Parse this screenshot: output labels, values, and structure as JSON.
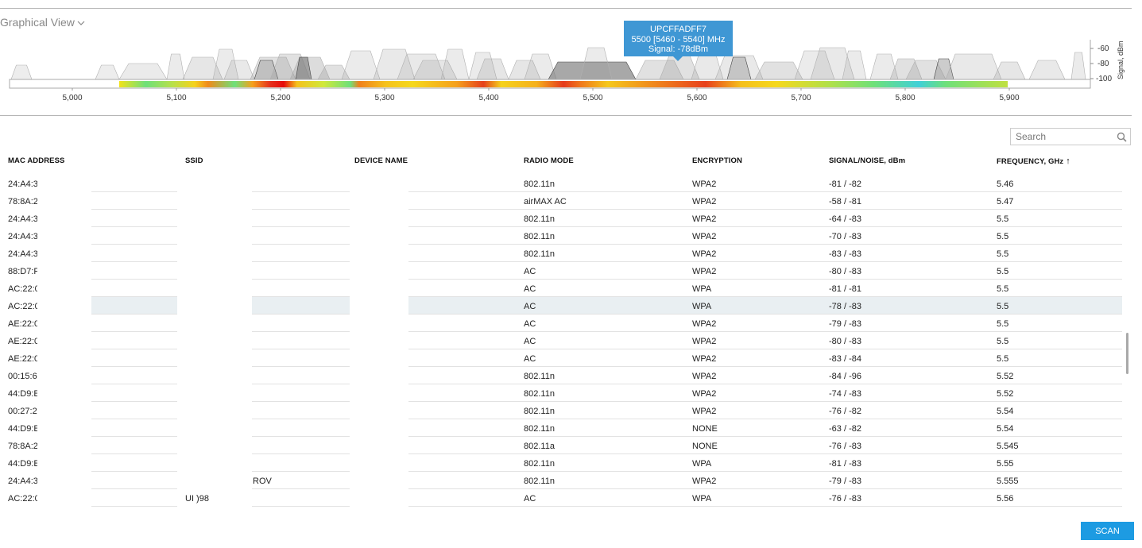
{
  "header": {
    "title": "Graphical View"
  },
  "tooltip": {
    "line1": "UPCFFADFF7",
    "line2": "5500 [5460 - 5540] MHz",
    "line3": "Signal: -78dBm"
  },
  "spectrum": {
    "x_ticks": [
      "5,000",
      "5,100",
      "5,200",
      "5,300",
      "5,400",
      "5,500",
      "5,600",
      "5,700",
      "5,800",
      "5,900"
    ],
    "y_ticks": [
      "-60",
      "-80",
      "-100"
    ],
    "y_label": "Signal, dBm"
  },
  "search": {
    "placeholder": "Search",
    "value": ""
  },
  "table": {
    "columns": {
      "mac": "MAC ADDRESS",
      "ssid": "SSID",
      "device": "DEVICE NAME",
      "radio": "RADIO MODE",
      "enc": "ENCRYPTION",
      "signal": "SIGNAL/NOISE, dBm",
      "freq": "FREQUENCY, GHz",
      "sort_arrow": "↑"
    },
    "rows": [
      {
        "mac": "24:A4:3",
        "ssid": "",
        "device": "",
        "radio": "802.11n",
        "enc": "WPA2",
        "signal": "-81 / -82",
        "freq": "5.46"
      },
      {
        "mac": "78:8A:2",
        "ssid": "",
        "device": "",
        "radio": "airMAX AC",
        "enc": "WPA2",
        "signal": "-58 / -81",
        "freq": "5.47"
      },
      {
        "mac": "24:A4:3",
        "ssid": "",
        "device": "",
        "radio": "802.11n",
        "enc": "WPA2",
        "signal": "-64 / -83",
        "freq": "5.5"
      },
      {
        "mac": "24:A4:3",
        "ssid": "",
        "device": "",
        "radio": "802.11n",
        "enc": "WPA2",
        "signal": "-70 / -83",
        "freq": "5.5"
      },
      {
        "mac": "24:A4:3",
        "ssid": "",
        "device": "",
        "radio": "802.11n",
        "enc": "WPA2",
        "signal": "-83 / -83",
        "freq": "5.5"
      },
      {
        "mac": "88:D7:F",
        "ssid": "",
        "device": "",
        "radio": "AC",
        "enc": "WPA2",
        "signal": "-80 / -83",
        "freq": "5.5"
      },
      {
        "mac": "AC:22:0",
        "ssid": "",
        "device": "",
        "radio": "AC",
        "enc": "WPA",
        "signal": "-81 / -81",
        "freq": "5.5"
      },
      {
        "mac": "AC:22:0",
        "ssid": "",
        "device": "",
        "radio": "AC",
        "enc": "WPA",
        "signal": "-78 / -83",
        "freq": "5.5",
        "highlighted": true
      },
      {
        "mac": "AE:22:0",
        "ssid": "",
        "device": "",
        "radio": "AC",
        "enc": "WPA2",
        "signal": "-79 / -83",
        "freq": "5.5"
      },
      {
        "mac": "AE:22:0",
        "ssid": "",
        "device": "",
        "radio": "AC",
        "enc": "WPA2",
        "signal": "-80 / -83",
        "freq": "5.5"
      },
      {
        "mac": "AE:22:0",
        "ssid": "",
        "device": "",
        "radio": "AC",
        "enc": "WPA2",
        "signal": "-83 / -84",
        "freq": "5.5"
      },
      {
        "mac": "00:15:6",
        "ssid": "",
        "device": "",
        "radio": "802.11n",
        "enc": "WPA2",
        "signal": "-84 / -96",
        "freq": "5.52"
      },
      {
        "mac": "44:D9:E",
        "ssid": "",
        "device": "",
        "radio": "802.11n",
        "enc": "WPA2",
        "signal": "-74 / -83",
        "freq": "5.52"
      },
      {
        "mac": "00:27:2",
        "ssid": "",
        "device": "",
        "radio": "802.11n",
        "enc": "WPA2",
        "signal": "-76 / -82",
        "freq": "5.54"
      },
      {
        "mac": "44:D9:E",
        "ssid": "",
        "device": "",
        "radio": "802.11n",
        "enc": "NONE",
        "signal": "-63 / -82",
        "freq": "5.54"
      },
      {
        "mac": "78:8A:2",
        "ssid": "",
        "device": "",
        "radio": "802.11a",
        "enc": "NONE",
        "signal": "-76 / -83",
        "freq": "5.545"
      },
      {
        "mac": "44:D9:E",
        "ssid": "",
        "device": "",
        "radio": "802.11n",
        "enc": "WPA",
        "signal": "-81 / -83",
        "freq": "5.55"
      },
      {
        "mac": "24:A4:3",
        "ssid": "",
        "device": "ROV",
        "radio": "802.11n",
        "enc": "WPA2",
        "signal": "-79 / -83",
        "freq": "5.555"
      },
      {
        "mac": "AC:22:0",
        "ssid": "UI        )98",
        "device": "",
        "radio": "AC",
        "enc": "WPA",
        "signal": "-76 / -83",
        "freq": "5.56"
      }
    ]
  },
  "scan_button": {
    "label": "SCAN"
  },
  "colors": {
    "accent": "#1d9be2",
    "highlight_row": "#e9eff2"
  }
}
